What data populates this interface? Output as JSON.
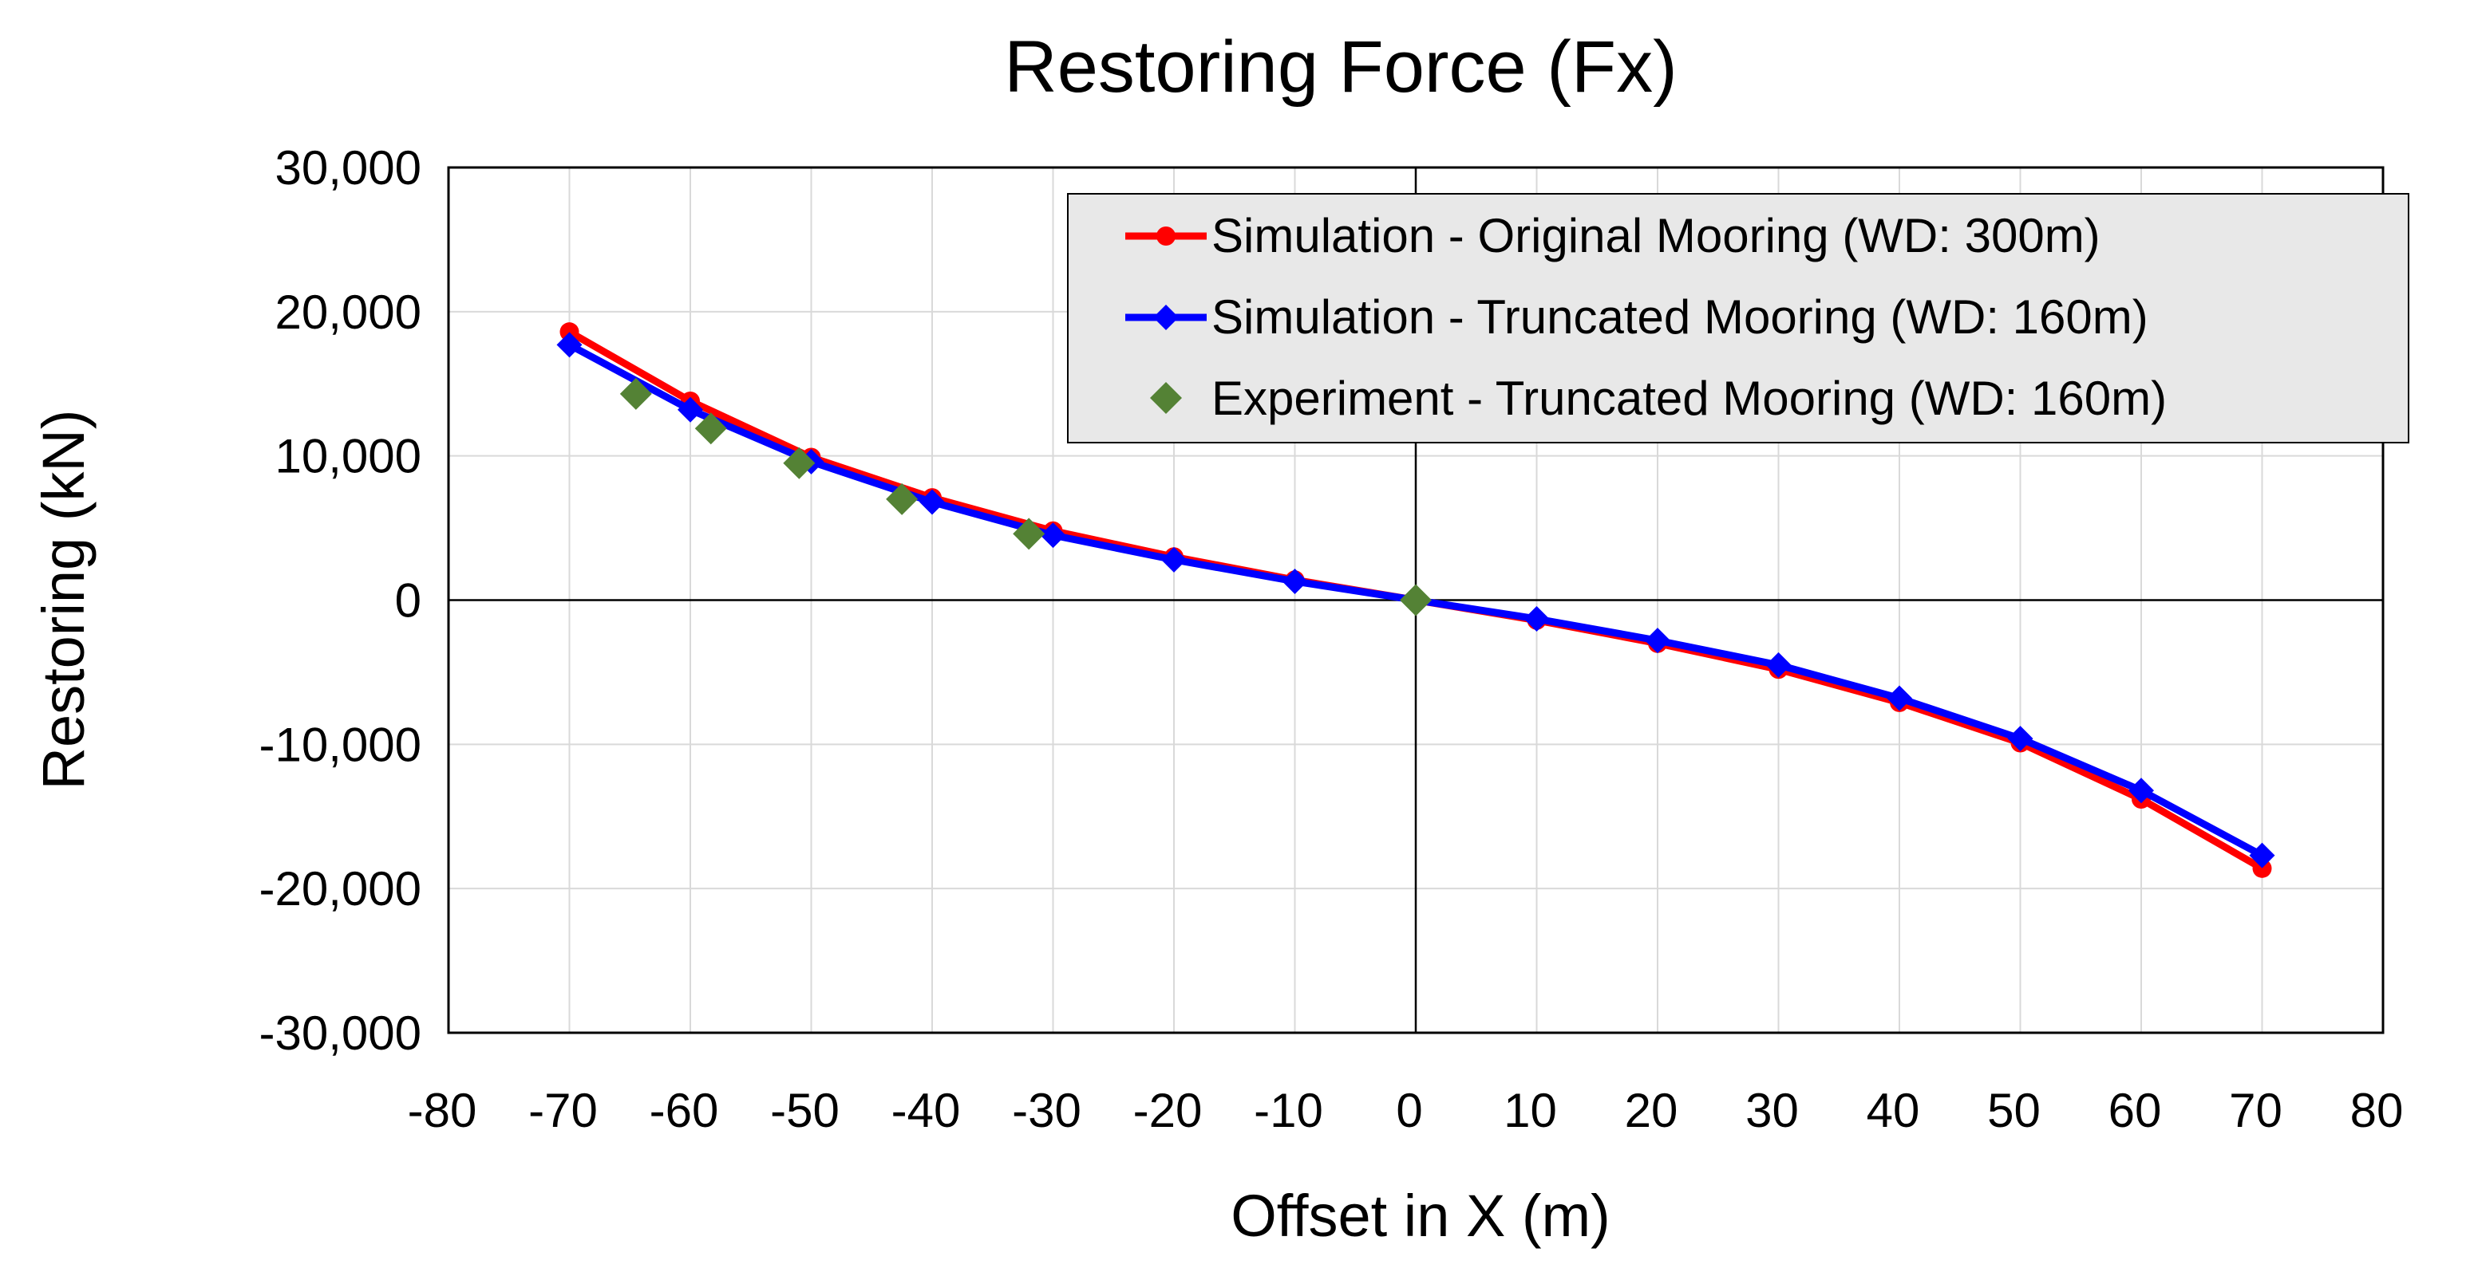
{
  "chart_data": {
    "type": "scatter",
    "title": "Restoring Force (Fx)",
    "xlabel": "Offset in X (m)",
    "ylabel": "Restoring (kN)",
    "xlim": [
      -80,
      80
    ],
    "ylim": [
      -30000,
      30000
    ],
    "x_ticks": [
      -80,
      -70,
      -60,
      -50,
      -40,
      -30,
      -20,
      -10,
      0,
      10,
      20,
      30,
      40,
      50,
      60,
      70,
      80
    ],
    "y_ticks": [
      -30000,
      -20000,
      -10000,
      0,
      10000,
      20000,
      30000
    ],
    "x_tick_labels": [
      "-80",
      "-70",
      "-60",
      "-50",
      "-40",
      "-30",
      "-20",
      "-10",
      "0",
      "10",
      "20",
      "30",
      "40",
      "50",
      "60",
      "70",
      "80"
    ],
    "y_tick_labels": [
      "-30,000",
      "-20,000",
      "-10,000",
      "0",
      "10,000",
      "20,000",
      "30,000"
    ],
    "grid": true,
    "legend_position": "top-right",
    "series": [
      {
        "name": "Simulation - Original Mooring (WD: 300m)",
        "color": "#ff0000",
        "marker": "circle",
        "line": true,
        "points": [
          [
            -70,
            18600
          ],
          [
            -60,
            13800
          ],
          [
            -50,
            9900
          ],
          [
            -40,
            7100
          ],
          [
            -30,
            4800
          ],
          [
            -20,
            3000
          ],
          [
            -10,
            1400
          ],
          [
            0,
            0
          ],
          [
            10,
            -1400
          ],
          [
            20,
            -3000
          ],
          [
            30,
            -4800
          ],
          [
            40,
            -7100
          ],
          [
            50,
            -9900
          ],
          [
            60,
            -13800
          ],
          [
            70,
            -18600
          ]
        ]
      },
      {
        "name": "Simulation - Truncated Mooring (WD: 160m)",
        "color": "#0000ff",
        "marker": "diamond",
        "line": true,
        "points": [
          [
            -70,
            17700
          ],
          [
            -60,
            13200
          ],
          [
            -50,
            9600
          ],
          [
            -40,
            6800
          ],
          [
            -30,
            4500
          ],
          [
            -20,
            2800
          ],
          [
            -10,
            1300
          ],
          [
            0,
            0
          ],
          [
            10,
            -1300
          ],
          [
            20,
            -2800
          ],
          [
            30,
            -4500
          ],
          [
            40,
            -6800
          ],
          [
            50,
            -9600
          ],
          [
            60,
            -13200
          ],
          [
            70,
            -17700
          ]
        ]
      },
      {
        "name": "Experiment - Truncated Mooring (WD: 160m)",
        "color": "#548235",
        "marker": "diamond",
        "line": false,
        "points": [
          [
            -64.5,
            14300
          ],
          [
            -58.3,
            11900
          ],
          [
            -51,
            9500
          ],
          [
            -42.5,
            7000
          ],
          [
            -32,
            4600
          ],
          [
            0,
            0
          ]
        ]
      }
    ]
  }
}
